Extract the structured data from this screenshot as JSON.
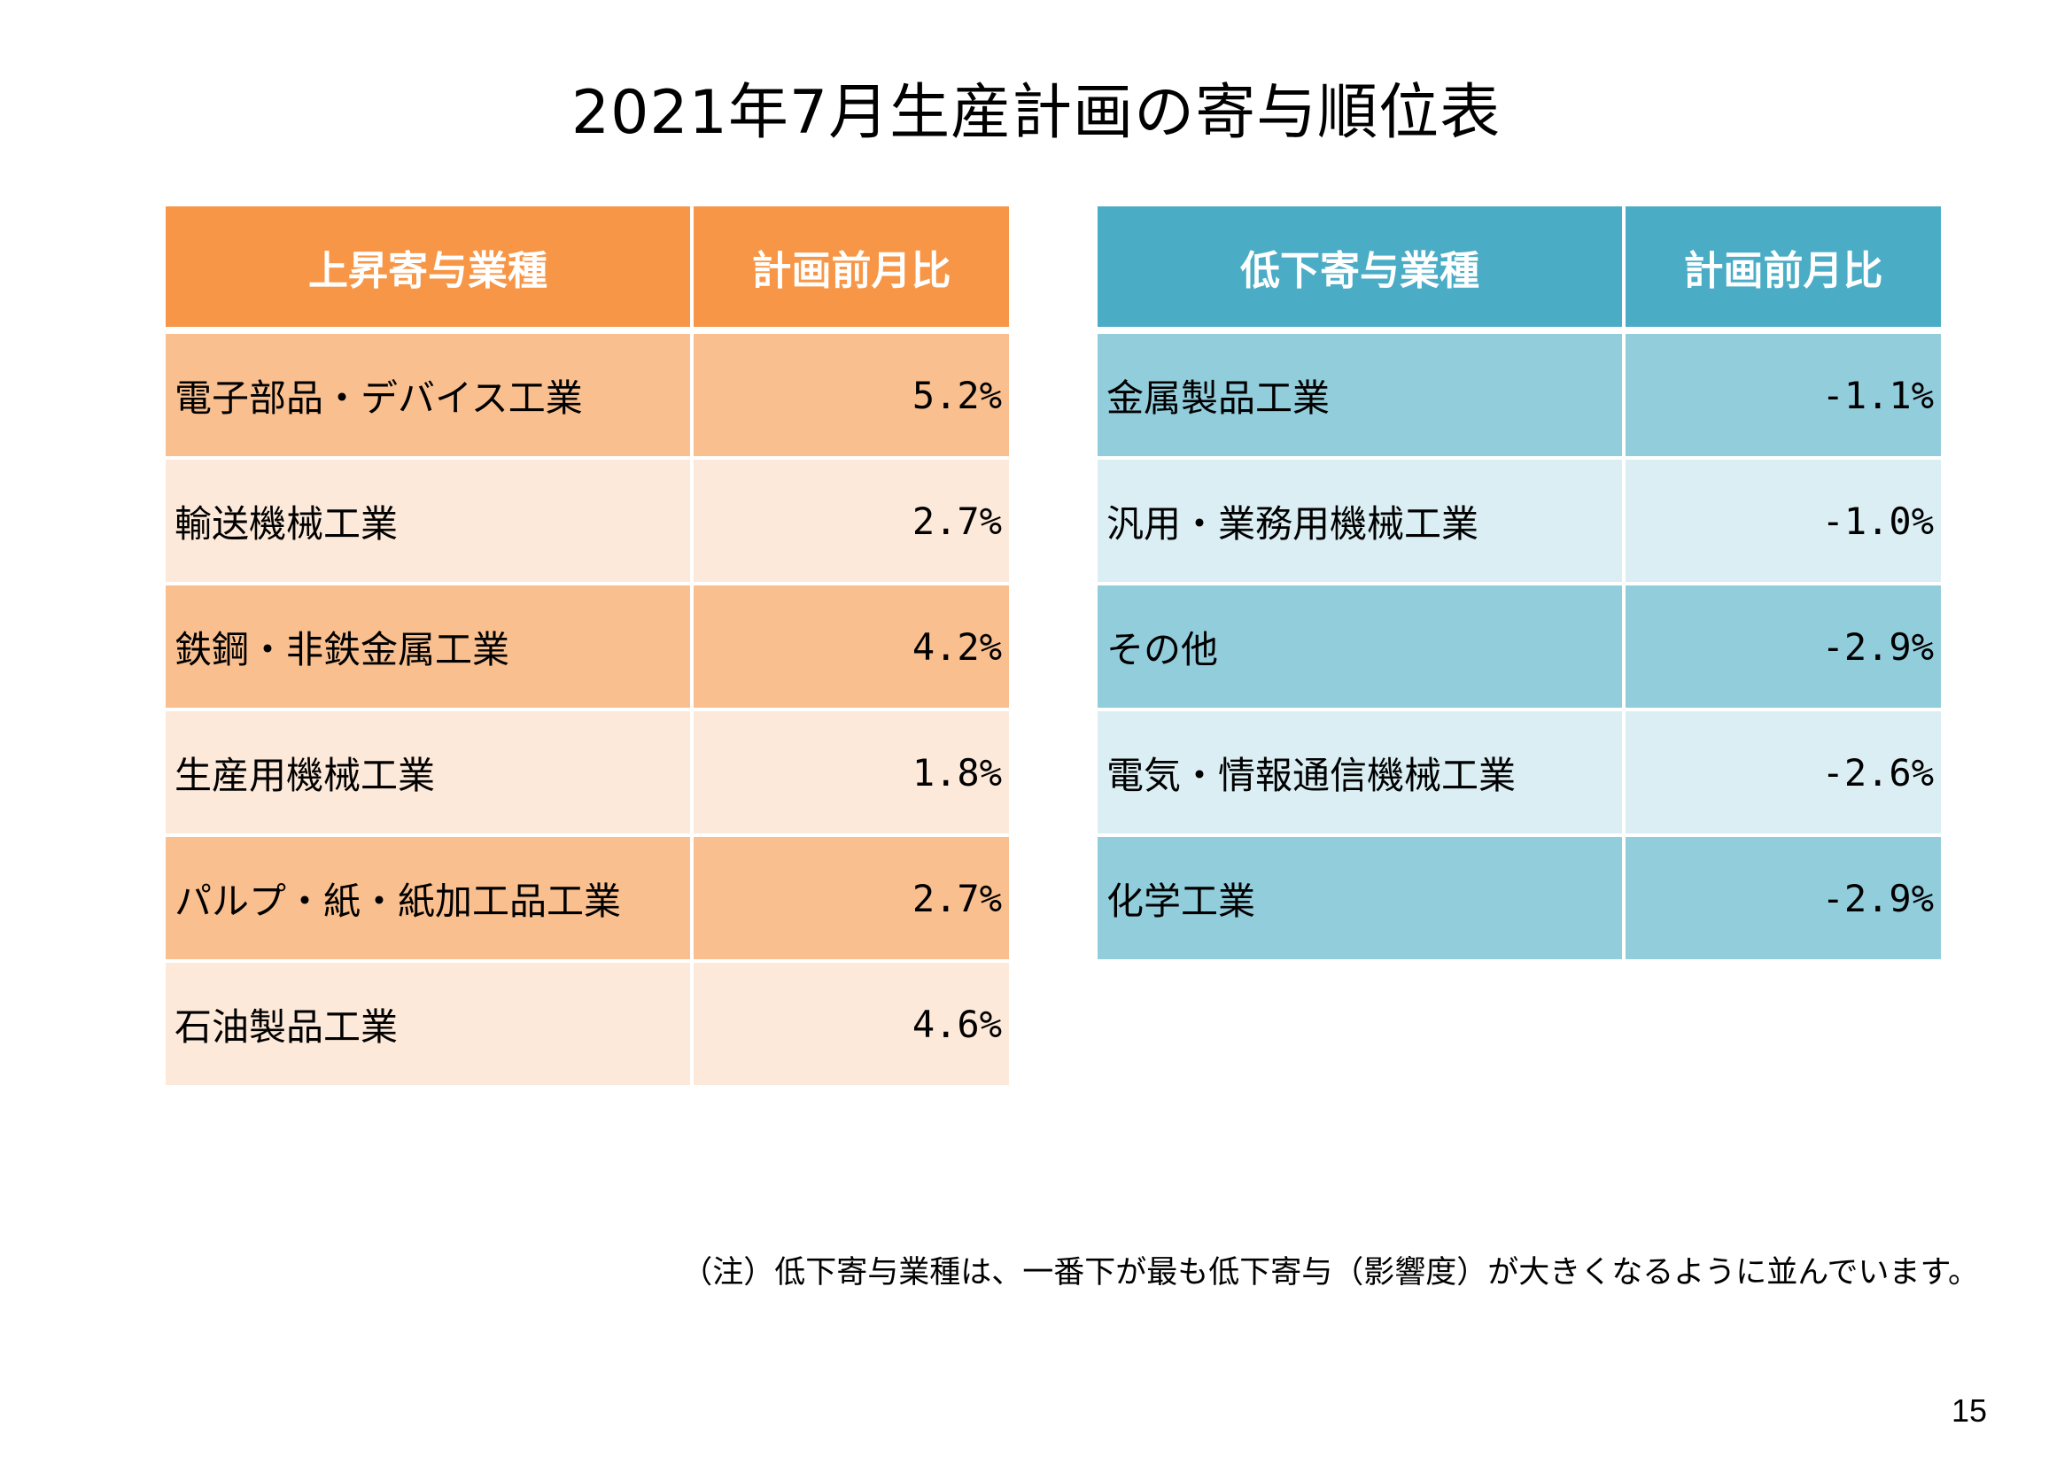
{
  "title": "2021年7月生産計画の寄与順位表",
  "rising_table": {
    "headers": [
      "上昇寄与業種",
      "計画前月比"
    ],
    "rows": [
      {
        "industry": "電子部品・デバイス工業",
        "value": "5.2%"
      },
      {
        "industry": "輸送機械工業",
        "value": "2.7%"
      },
      {
        "industry": "鉄鋼・非鉄金属工業",
        "value": "4.2%"
      },
      {
        "industry": "生産用機械工業",
        "value": "1.8%"
      },
      {
        "industry": "パルプ・紙・紙加工品工業",
        "value": "2.7%"
      },
      {
        "industry": "石油製品工業",
        "value": "4.6%"
      }
    ]
  },
  "falling_table": {
    "headers": [
      "低下寄与業種",
      "計画前月比"
    ],
    "rows": [
      {
        "industry": "金属製品工業",
        "value": "-1.1%"
      },
      {
        "industry": "汎用・業務用機械工業",
        "value": "-1.0%"
      },
      {
        "industry": "その他",
        "value": "-2.9%"
      },
      {
        "industry": "電気・情報通信機械工業",
        "value": "-2.6%"
      },
      {
        "industry": "化学工業",
        "value": "-2.9%"
      }
    ]
  },
  "note": "（注）低下寄与業種は、一番下が最も低下寄与（影響度）が大きくなるように並んでいます。",
  "page_number": "15",
  "colors": {
    "orange_header": "#F79646",
    "orange_dark": "#F9BF8F",
    "orange_light": "#FDE9D9",
    "blue_header": "#4BACC6",
    "blue_dark": "#92CDDC",
    "blue_light": "#DAEEF3"
  }
}
